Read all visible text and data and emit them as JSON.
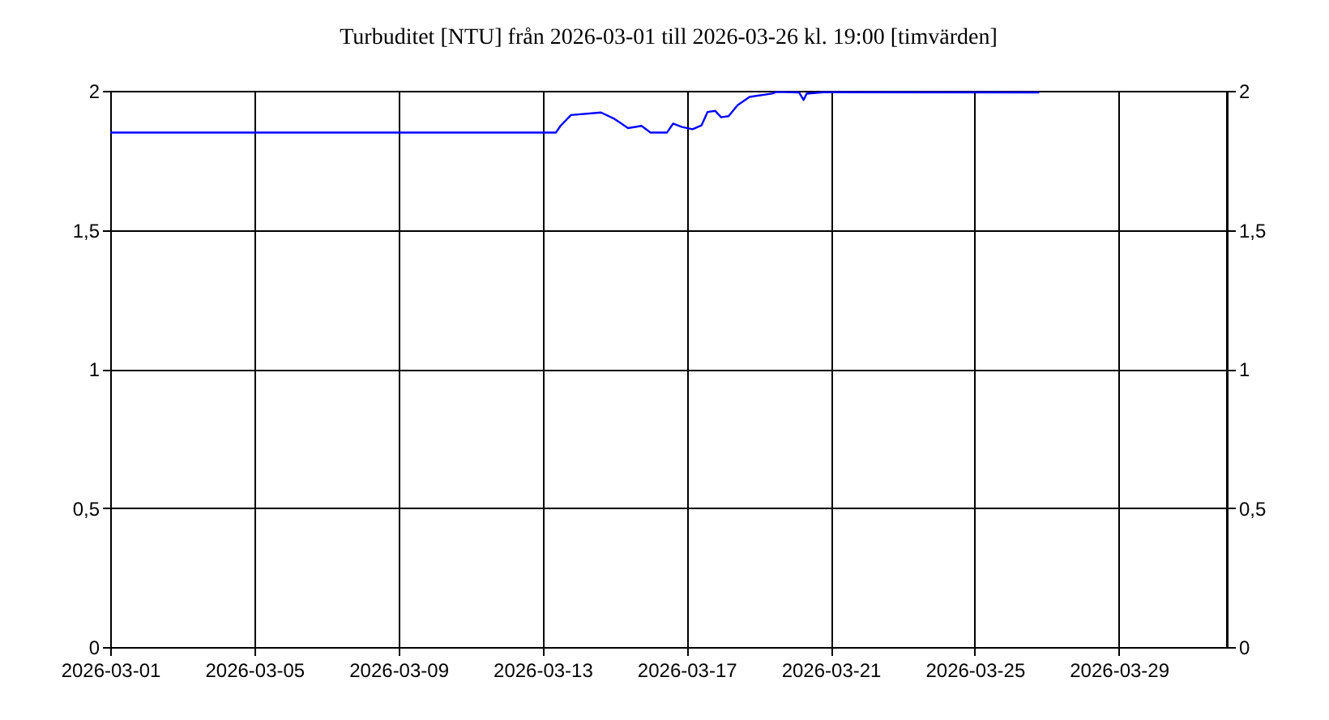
{
  "chart_data": {
    "type": "line",
    "title": "Turbuditet [NTU] från 2026-03-01 till 2026-03-26 kl. 19:00 [timvärden]",
    "x": [
      "2026-03-01T00:00",
      "2026-03-12T09:00",
      "2026-03-13T09:00",
      "2026-03-13T12:00",
      "2026-03-13T19:00",
      "2026-03-14T15:00",
      "2026-03-15T00:00",
      "2026-03-15T09:00",
      "2026-03-15T18:00",
      "2026-03-16T00:00",
      "2026-03-16T11:00",
      "2026-03-16T15:00",
      "2026-03-16T21:00",
      "2026-03-17T04:00",
      "2026-03-17T10:00",
      "2026-03-17T14:00",
      "2026-03-17T19:00",
      "2026-03-17T23:00",
      "2026-03-18T04:00",
      "2026-03-18T10:00",
      "2026-03-18T18:00",
      "2026-03-19T09:00",
      "2026-03-19T12:00",
      "2026-03-20T03:00",
      "2026-03-20T06:00",
      "2026-03-20T08:00",
      "2026-03-20T19:00",
      "2026-03-26T19:00"
    ],
    "series": [
      {
        "color": "#0000ff",
        "values": [
          1.85,
          1.85,
          1.85,
          1.874,
          1.913,
          1.922,
          1.899,
          1.866,
          1.874,
          1.85,
          1.85,
          1.882,
          1.87,
          1.862,
          1.876,
          1.924,
          1.928,
          1.905,
          1.909,
          1.948,
          1.978,
          1.99,
          1.996,
          1.994,
          1.967,
          1.99,
          1.995,
          1.994
        ]
      }
    ],
    "xlim": [
      "2026-03-01",
      "2026-04-01"
    ],
    "xticks": [
      {
        "value": "2026-03-01",
        "label": "2026-03-01"
      },
      {
        "value": "2026-03-05",
        "label": "2026-03-05"
      },
      {
        "value": "2026-03-09",
        "label": "2026-03-09"
      },
      {
        "value": "2026-03-13",
        "label": "2026-03-13"
      },
      {
        "value": "2026-03-17",
        "label": "2026-03-17"
      },
      {
        "value": "2026-03-21",
        "label": "2026-03-21"
      },
      {
        "value": "2026-03-25",
        "label": "2026-03-25"
      },
      {
        "value": "2026-03-29",
        "label": "2026-03-29"
      }
    ],
    "ylim": [
      0,
      2
    ],
    "yticks": [
      0,
      {
        "value": 0.5,
        "label": "0,5"
      },
      1,
      {
        "value": 1.5,
        "label": "1,5"
      },
      2
    ],
    "y2lim": [
      0,
      2
    ],
    "y2ticks": [
      0,
      {
        "value": 0.5,
        "label": "0,5"
      },
      1,
      {
        "value": 1.5,
        "label": "1,5"
      },
      2
    ],
    "grid": true,
    "marker": "none",
    "line_style": "solid"
  }
}
